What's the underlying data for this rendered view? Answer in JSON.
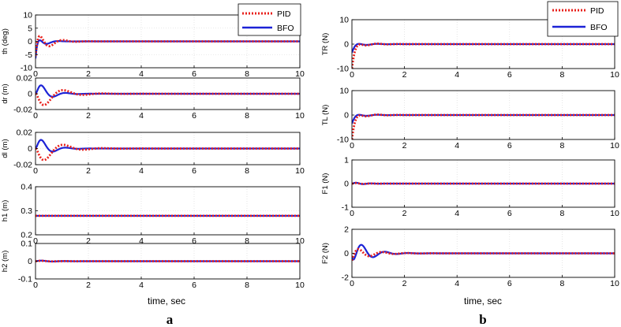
{
  "panel_labels": {
    "left": "a",
    "right": "b"
  },
  "colors": {
    "pid": "#e8211c",
    "bfo": "#1c22d6",
    "grid": "#d4d4d4",
    "axis": "#000000"
  },
  "chart_data": [
    {
      "type": "line",
      "figure": "a",
      "ylabel": "th (deg)",
      "xlabel": "",
      "xlim": [
        0,
        10
      ],
      "ylim": [
        -10,
        10
      ],
      "xticks": [
        0,
        2,
        4,
        6,
        8,
        10
      ],
      "yticks": [
        -10,
        -5,
        0,
        5,
        10
      ],
      "grid": true,
      "legend": "top-right",
      "series": [
        {
          "name": "PID",
          "style": "dotted",
          "model": {
            "offset": 0,
            "initial": -5.5,
            "amplitude": 7.5,
            "decay": 2.6,
            "period": 1.0,
            "phase": 1.05
          }
        },
        {
          "name": "BFO",
          "style": "solid",
          "model": {
            "offset": 0,
            "initial": -6.5,
            "amplitude": 6.5,
            "decay": 4.5,
            "period": 0.85,
            "phase": 1.0
          }
        }
      ]
    },
    {
      "type": "line",
      "figure": "a",
      "ylabel": "dr (m)",
      "xlabel": "",
      "xlim": [
        0,
        10
      ],
      "ylim": [
        -0.02,
        0.02
      ],
      "xticks": [
        0,
        2,
        4,
        6,
        8,
        10
      ],
      "yticks": [
        -0.02,
        0,
        0.02
      ],
      "grid": true,
      "series": [
        {
          "name": "PID",
          "style": "dotted",
          "model": {
            "offset": 0,
            "initial": 0,
            "amplitude": 0.026,
            "decay": 1.6,
            "period": 1.5,
            "phase": 3.14
          }
        },
        {
          "name": "BFO",
          "style": "solid",
          "model": {
            "offset": 0,
            "initial": 0,
            "amplitude": 0.022,
            "decay": 2.6,
            "period": 0.95,
            "phase": 0.05
          }
        }
      ]
    },
    {
      "type": "line",
      "figure": "a",
      "ylabel": "dl (m)",
      "xlabel": "",
      "xlim": [
        0,
        10
      ],
      "ylim": [
        -0.02,
        0.02
      ],
      "xticks": [
        0,
        2,
        4,
        6,
        8,
        10
      ],
      "yticks": [
        -0.02,
        0,
        0.02
      ],
      "grid": true,
      "series": [
        {
          "name": "PID",
          "style": "dotted",
          "model": {
            "offset": 0,
            "initial": 0,
            "amplitude": 0.026,
            "decay": 1.6,
            "period": 1.5,
            "phase": 3.14
          }
        },
        {
          "name": "BFO",
          "style": "solid",
          "model": {
            "offset": 0,
            "initial": 0,
            "amplitude": 0.022,
            "decay": 2.6,
            "period": 0.95,
            "phase": 0.05
          }
        }
      ]
    },
    {
      "type": "line",
      "figure": "a",
      "ylabel": "h1 (m)",
      "xlabel": "",
      "xlim": [
        0,
        10
      ],
      "ylim": [
        0.2,
        0.4
      ],
      "xticks": [
        0,
        2,
        4,
        6,
        8,
        10
      ],
      "yticks": [
        0.2,
        0.3,
        0.4
      ],
      "grid": true,
      "series": [
        {
          "name": "PID",
          "style": "dotted",
          "model": {
            "offset": 0.279,
            "initial": 0,
            "amplitude": 0,
            "decay": 1,
            "period": 1,
            "phase": 0
          }
        },
        {
          "name": "BFO",
          "style": "solid",
          "model": {
            "offset": 0.279,
            "initial": 0,
            "amplitude": 0,
            "decay": 1,
            "period": 1,
            "phase": 0
          }
        }
      ]
    },
    {
      "type": "line",
      "figure": "a",
      "ylabel": "h2 (m)",
      "xlabel": "time, sec",
      "xlim": [
        0,
        10
      ],
      "ylim": [
        -0.1,
        0.1
      ],
      "xticks": [
        0,
        2,
        4,
        6,
        8,
        10
      ],
      "yticks": [
        -0.1,
        0,
        0.1
      ],
      "grid": true,
      "series": [
        {
          "name": "PID",
          "style": "dotted",
          "model": {
            "offset": 0,
            "initial": 0,
            "amplitude": 0.004,
            "decay": 2,
            "period": 0.9,
            "phase": 0
          }
        },
        {
          "name": "BFO",
          "style": "solid",
          "model": {
            "offset": 0,
            "initial": 0,
            "amplitude": 0.006,
            "decay": 2,
            "period": 0.9,
            "phase": 0
          }
        }
      ]
    },
    {
      "type": "line",
      "figure": "b",
      "ylabel": "TR (N)",
      "xlabel": "",
      "xlim": [
        0,
        10
      ],
      "ylim": [
        -10,
        10
      ],
      "xticks": [
        0,
        2,
        4,
        6,
        8,
        10
      ],
      "yticks": [
        -10,
        0,
        10
      ],
      "grid": true,
      "legend": "top-right",
      "series": [
        {
          "name": "PID",
          "style": "dotted",
          "model": {
            "offset": 0,
            "initial": -10,
            "amplitude": 1.6,
            "decay": 2.2,
            "period": 0.8,
            "phase": 0
          }
        },
        {
          "name": "BFO",
          "style": "solid",
          "model": {
            "offset": 0,
            "initial": -3.5,
            "amplitude": 1.0,
            "decay": 2.2,
            "period": 0.8,
            "phase": 0
          }
        }
      ]
    },
    {
      "type": "line",
      "figure": "b",
      "ylabel": "TL (N)",
      "xlabel": "",
      "xlim": [
        0,
        10
      ],
      "ylim": [
        -10,
        10
      ],
      "xticks": [
        0,
        2,
        4,
        6,
        8,
        10
      ],
      "yticks": [
        -10,
        0,
        10
      ],
      "grid": true,
      "series": [
        {
          "name": "PID",
          "style": "dotted",
          "model": {
            "offset": 0,
            "initial": -10,
            "amplitude": 1.6,
            "decay": 2.2,
            "period": 0.8,
            "phase": 0
          }
        },
        {
          "name": "BFO",
          "style": "solid",
          "model": {
            "offset": 0,
            "initial": -3.5,
            "amplitude": 1.0,
            "decay": 2.2,
            "period": 0.8,
            "phase": 0
          }
        }
      ]
    },
    {
      "type": "line",
      "figure": "b",
      "ylabel": "F1 (N)",
      "xlabel": "",
      "xlim": [
        0,
        10
      ],
      "ylim": [
        -1,
        1
      ],
      "xticks": [
        0,
        2,
        4,
        6,
        8,
        10
      ],
      "yticks": [
        -1,
        0,
        1
      ],
      "grid": true,
      "series": [
        {
          "name": "PID",
          "style": "dotted",
          "model": {
            "offset": 0,
            "initial": 0,
            "amplitude": 0.05,
            "decay": 3,
            "period": 0.6,
            "phase": 0
          }
        },
        {
          "name": "BFO",
          "style": "solid",
          "model": {
            "offset": 0,
            "initial": 0,
            "amplitude": 0.08,
            "decay": 3,
            "period": 0.6,
            "phase": 0
          }
        }
      ]
    },
    {
      "type": "line",
      "figure": "b",
      "ylabel": "F2 (N)",
      "xlabel": "time, sec",
      "xlim": [
        0,
        10
      ],
      "ylim": [
        -2,
        2
      ],
      "xticks": [
        0,
        2,
        4,
        6,
        8,
        10
      ],
      "yticks": [
        -2,
        0,
        2
      ],
      "grid": true,
      "series": [
        {
          "name": "PID",
          "style": "dotted",
          "model": {
            "offset": 0,
            "initial": -0.6,
            "amplitude": 0.7,
            "decay": 1.6,
            "period": 0.95,
            "phase": 0.1
          }
        },
        {
          "name": "BFO",
          "style": "solid",
          "model": {
            "offset": 0,
            "initial": -0.3,
            "amplitude": 1.5,
            "decay": 1.9,
            "period": 0.9,
            "phase": -1.1
          }
        }
      ]
    }
  ]
}
